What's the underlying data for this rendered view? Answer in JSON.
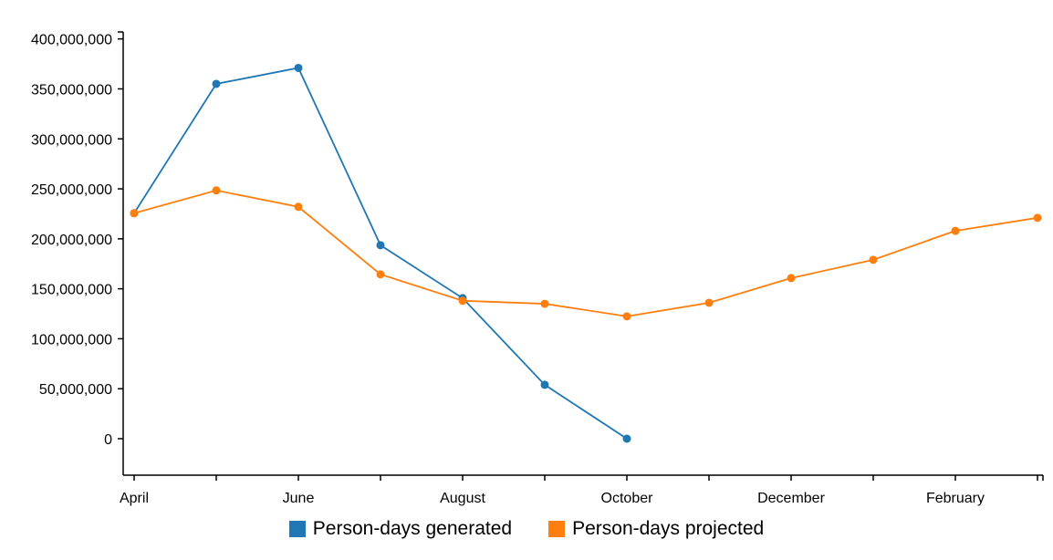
{
  "chart_data": {
    "type": "line",
    "categories": [
      "April",
      null,
      "June",
      null,
      "August",
      null,
      "October",
      null,
      "December",
      null,
      "February",
      null
    ],
    "series": [
      {
        "name": "Person-days generated",
        "color": "#1f77b4",
        "values": [
          225600000,
          355000000,
          371000000,
          193600000,
          140600000,
          53900000,
          0,
          null,
          null,
          null,
          null,
          null
        ]
      },
      {
        "name": "Person-days projected",
        "color": "#ff7f0e",
        "values": [
          225600000,
          248400000,
          232000000,
          164400000,
          138000000,
          135000000,
          122400000,
          136000000,
          160700000,
          179000000,
          208000000,
          221000000
        ]
      }
    ],
    "ylim": [
      -36500000,
      407000000
    ],
    "yticks": [
      {
        "value": 0,
        "label": "0"
      },
      {
        "value": 50000000,
        "label": "50,000,000"
      },
      {
        "value": 100000000,
        "label": "100,000,000"
      },
      {
        "value": 150000000,
        "label": "150,000,000"
      },
      {
        "value": 200000000,
        "label": "200,000,000"
      },
      {
        "value": 250000000,
        "label": "250,000,000"
      },
      {
        "value": 300000000,
        "label": "300,000,000"
      },
      {
        "value": 350000000,
        "label": "350,000,000"
      },
      {
        "value": 400000000,
        "label": "400,000,000"
      }
    ]
  }
}
